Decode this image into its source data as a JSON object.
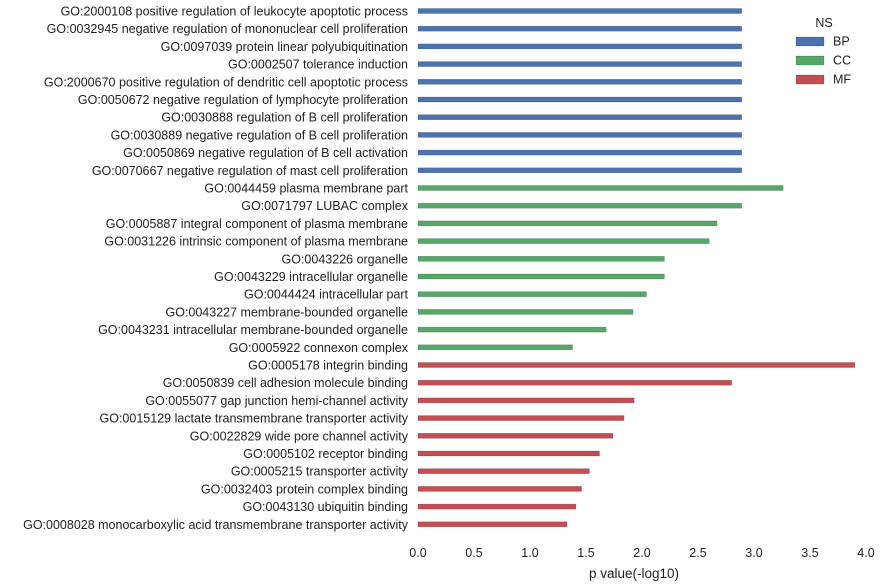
{
  "chart_data": {
    "type": "bar",
    "orientation": "horizontal",
    "xlabel": "p value(-log10)",
    "ylabel": "",
    "title": "",
    "xlim": [
      0.0,
      4.0
    ],
    "xticks": [
      "0.0",
      "0.5",
      "1.0",
      "1.5",
      "2.0",
      "2.5",
      "3.0",
      "3.5",
      "4.0"
    ],
    "grid": false,
    "legend": {
      "title": "NS",
      "placement": "top-right",
      "entries": [
        {
          "name": "BP",
          "color": "#4c72b0"
        },
        {
          "name": "CC",
          "color": "#55a868"
        },
        {
          "name": "MF",
          "color": "#c44e52"
        }
      ]
    },
    "bars": [
      {
        "label": "GO:2000108 positive regulation of leukocyte apoptotic process",
        "value": 2.89,
        "group": "BP"
      },
      {
        "label": "GO:0032945 negative regulation of mononuclear cell proliferation",
        "value": 2.89,
        "group": "BP"
      },
      {
        "label": "GO:0097039 protein linear polyubiquitination",
        "value": 2.89,
        "group": "BP"
      },
      {
        "label": "GO:0002507 tolerance induction",
        "value": 2.89,
        "group": "BP"
      },
      {
        "label": "GO:2000670 positive regulation of dendritic cell apoptotic process",
        "value": 2.89,
        "group": "BP"
      },
      {
        "label": "GO:0050672 negative regulation of lymphocyte proliferation",
        "value": 2.89,
        "group": "BP"
      },
      {
        "label": "GO:0030888 regulation of B cell proliferation",
        "value": 2.89,
        "group": "BP"
      },
      {
        "label": "GO:0030889 negative regulation of B cell proliferation",
        "value": 2.89,
        "group": "BP"
      },
      {
        "label": "GO:0050869 negative regulation of B cell activation",
        "value": 2.89,
        "group": "BP"
      },
      {
        "label": "GO:0070667 negative regulation of mast cell proliferation",
        "value": 2.89,
        "group": "BP"
      },
      {
        "label": "GO:0044459 plasma membrane part",
        "value": 3.26,
        "group": "CC"
      },
      {
        "label": "GO:0071797 LUBAC complex",
        "value": 2.89,
        "group": "CC"
      },
      {
        "label": "GO:0005887 integral component of plasma membrane",
        "value": 2.67,
        "group": "CC"
      },
      {
        "label": "GO:0031226 intrinsic component of plasma membrane",
        "value": 2.6,
        "group": "CC"
      },
      {
        "label": "GO:0043226 organelle",
        "value": 2.2,
        "group": "CC"
      },
      {
        "label": "GO:0043229 intracellular organelle",
        "value": 2.2,
        "group": "CC"
      },
      {
        "label": "GO:0044424 intracellular part",
        "value": 2.04,
        "group": "CC"
      },
      {
        "label": "GO:0043227 membrane-bounded organelle",
        "value": 1.92,
        "group": "CC"
      },
      {
        "label": "GO:0043231 intracellular membrane-bounded organelle",
        "value": 1.68,
        "group": "CC"
      },
      {
        "label": "GO:0005922 connexon complex",
        "value": 1.38,
        "group": "CC"
      },
      {
        "label": "GO:0005178 integrin binding",
        "value": 3.9,
        "group": "MF"
      },
      {
        "label": "GO:0050839 cell adhesion molecule binding",
        "value": 2.8,
        "group": "MF"
      },
      {
        "label": "GO:0055077 gap junction hemi-channel activity",
        "value": 1.93,
        "group": "MF"
      },
      {
        "label": "GO:0015129 lactate transmembrane transporter activity",
        "value": 1.84,
        "group": "MF"
      },
      {
        "label": "GO:0022829 wide pore channel activity",
        "value": 1.74,
        "group": "MF"
      },
      {
        "label": "GO:0005102 receptor binding",
        "value": 1.62,
        "group": "MF"
      },
      {
        "label": "GO:0005215 transporter activity",
        "value": 1.53,
        "group": "MF"
      },
      {
        "label": "GO:0032403 protein complex binding",
        "value": 1.46,
        "group": "MF"
      },
      {
        "label": "GO:0043130 ubiquitin binding",
        "value": 1.41,
        "group": "MF"
      },
      {
        "label": "GO:0008028 monocarboxylic acid transmembrane transporter activity",
        "value": 1.33,
        "group": "MF"
      }
    ]
  }
}
